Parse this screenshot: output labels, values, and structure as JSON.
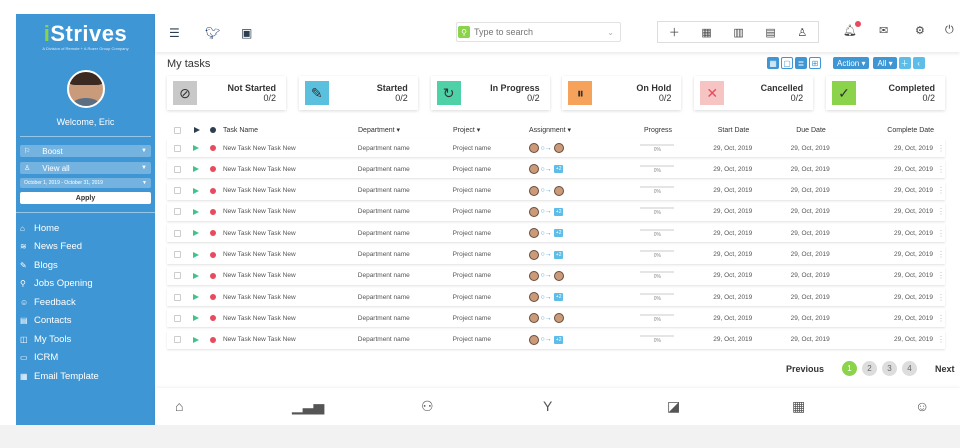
{
  "sidebar": {
    "logo": "Strives",
    "logo_sub": "A Division of Remote + A Rozer Group Company",
    "welcome": "Welcome, Eric",
    "filters": [
      {
        "label": "Boost",
        "icon": "flag-icon"
      },
      {
        "label": "View all",
        "icon": "user-icon"
      }
    ],
    "date_range": "October 1, 2019 - October 31, 2019",
    "apply_label": "Apply",
    "nav": [
      {
        "label": "Home",
        "icon": "home-icon"
      },
      {
        "label": "News Feed",
        "icon": "news-feed-icon"
      },
      {
        "label": "Blogs",
        "icon": "blogs-icon"
      },
      {
        "label": "Jobs Opening",
        "icon": "jobs-icon"
      },
      {
        "label": "Feedback",
        "icon": "feedback-icon"
      },
      {
        "label": "Contacts",
        "icon": "contacts-icon"
      },
      {
        "label": "My Tools",
        "icon": "tools-icon"
      },
      {
        "label": "ICRM",
        "icon": "icrm-icon"
      },
      {
        "label": "Email Template",
        "icon": "email-template-icon"
      }
    ]
  },
  "topbar": {
    "search_placeholder": "Type to search"
  },
  "main": {
    "title": "My tasks",
    "action_label": "Action",
    "all_label": "All",
    "status_cards": [
      {
        "title": "Not Started",
        "count": "0/2",
        "color": "#c8c8c8"
      },
      {
        "title": "Started",
        "count": "0/2",
        "color": "#5bc0de"
      },
      {
        "title": "In Progress",
        "count": "0/2",
        "color": "#4fd1a8"
      },
      {
        "title": "On Hold",
        "count": "0/2",
        "color": "#f6a25b"
      },
      {
        "title": "Cancelled",
        "count": "0/2",
        "color": "#f7c4c4"
      },
      {
        "title": "Completed",
        "count": "0/2",
        "color": "#8bd34a"
      }
    ],
    "columns": {
      "task": "Task Name",
      "department": "Department",
      "project": "Project",
      "assignment": "Assignment",
      "progress": "Progress",
      "start": "Start Date",
      "due": "Due Date",
      "complete": "Complete Date"
    },
    "rows": [
      {
        "task": "New Task New Task New",
        "department": "Department name",
        "project": "Project name",
        "assignee": "avatar",
        "progress": "0%",
        "start": "29, Oct, 2019",
        "due": "29, Oct, 2019",
        "complete": "29, Oct, 2019"
      },
      {
        "task": "New Task New Task New",
        "department": "Department name",
        "project": "Project name",
        "assignee": "+2",
        "progress": "0%",
        "start": "29, Oct, 2019",
        "due": "29, Oct, 2019",
        "complete": "29, Oct, 2019"
      },
      {
        "task": "New Task New Task New",
        "department": "Department name",
        "project": "Project name",
        "assignee": "avatar",
        "progress": "0%",
        "start": "29, Oct, 2019",
        "due": "29, Oct, 2019",
        "complete": "29, Oct, 2019"
      },
      {
        "task": "New Task New Task New",
        "department": "Department name",
        "project": "Project name",
        "assignee": "+2",
        "progress": "0%",
        "start": "29, Oct, 2019",
        "due": "29, Oct, 2019",
        "complete": "29, Oct, 2019"
      },
      {
        "task": "New Task New Task New",
        "department": "Department name",
        "project": "Project name",
        "assignee": "+2",
        "progress": "0%",
        "start": "29, Oct, 2019",
        "due": "29, Oct, 2019",
        "complete": "29, Oct, 2019"
      },
      {
        "task": "New Task New Task New",
        "department": "Department name",
        "project": "Project name",
        "assignee": "+2",
        "progress": "0%",
        "start": "29, Oct, 2019",
        "due": "29, Oct, 2019",
        "complete": "29, Oct, 2019"
      },
      {
        "task": "New Task New Task New",
        "department": "Department name",
        "project": "Project name",
        "assignee": "avatar",
        "progress": "0%",
        "start": "29, Oct, 2019",
        "due": "29, Oct, 2019",
        "complete": "29, Oct, 2019"
      },
      {
        "task": "New Task New Task New",
        "department": "Department name",
        "project": "Project name",
        "assignee": "+2",
        "progress": "0%",
        "start": "29, Oct, 2019",
        "due": "29, Oct, 2019",
        "complete": "29, Oct, 2019"
      },
      {
        "task": "New Task New Task New",
        "department": "Department name",
        "project": "Project name",
        "assignee": "avatar",
        "progress": "0%",
        "start": "29, Oct, 2019",
        "due": "29, Oct, 2019",
        "complete": "29, Oct, 2019"
      },
      {
        "task": "New Task New Task New",
        "department": "Department name",
        "project": "Project name",
        "assignee": "+2",
        "progress": "0%",
        "start": "29, Oct, 2019",
        "due": "29, Oct, 2019",
        "complete": "29, Oct, 2019"
      }
    ],
    "pagination": {
      "previous": "Previous",
      "next": "Next",
      "pages": [
        "1",
        "2",
        "3",
        "4"
      ],
      "current": "1"
    }
  }
}
